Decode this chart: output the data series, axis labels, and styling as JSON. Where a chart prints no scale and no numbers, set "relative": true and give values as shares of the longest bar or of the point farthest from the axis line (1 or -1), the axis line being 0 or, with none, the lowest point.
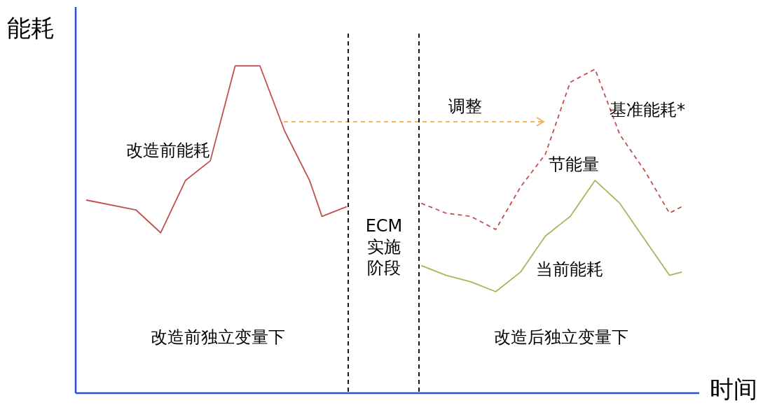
{
  "chart_data": {
    "type": "line",
    "relative": true,
    "ylabel": "能耗",
    "xlabel": "时间",
    "categories": [
      null,
      null,
      null,
      null,
      null,
      null,
      null,
      null,
      null,
      null,
      null,
      null,
      null,
      null,
      null,
      null,
      null,
      null,
      null,
      null,
      null,
      null,
      null,
      null,
      null,
      null,
      null,
      null,
      null,
      null,
      null,
      null,
      null,
      null,
      null,
      null,
      null,
      null,
      null,
      null,
      null,
      null,
      null,
      null,
      null,
      null,
      null,
      null,
      null
    ],
    "series": [
      {
        "name": "改造前能耗",
        "color": "#c0504d",
        "line_style": "solid",
        "values": [
          0.59,
          null,
          null,
          null,
          0.56,
          null,
          0.49,
          null,
          0.65,
          null,
          0.71,
          null,
          1.0,
          null,
          1.0,
          null,
          0.8,
          null,
          0.65,
          0.54,
          null,
          0.57,
          null,
          null,
          null,
          null,
          null,
          null,
          null,
          null,
          null,
          null,
          null,
          null,
          null,
          null,
          null,
          null,
          null,
          null,
          null,
          null,
          null,
          null,
          null,
          null,
          null,
          null,
          null
        ]
      },
      {
        "name": "基准能耗*",
        "color": "#c0504d",
        "line_style": "dashed",
        "values": [
          null,
          null,
          null,
          null,
          null,
          null,
          null,
          null,
          null,
          null,
          null,
          null,
          null,
          null,
          null,
          null,
          null,
          null,
          null,
          null,
          null,
          null,
          null,
          null,
          null,
          null,
          null,
          0.58,
          null,
          0.55,
          null,
          0.54,
          null,
          0.5,
          null,
          0.63,
          null,
          0.73,
          null,
          0.95,
          null,
          0.99,
          null,
          0.79,
          null,
          0.68,
          null,
          0.55,
          0.57
        ]
      },
      {
        "name": "当前能耗",
        "color": "#9bbb59",
        "line_style": "solid",
        "values": [
          null,
          null,
          null,
          null,
          null,
          null,
          null,
          null,
          null,
          null,
          null,
          null,
          null,
          null,
          null,
          null,
          null,
          null,
          null,
          null,
          null,
          null,
          null,
          null,
          null,
          null,
          null,
          0.39,
          null,
          0.36,
          null,
          0.34,
          null,
          0.31,
          null,
          0.37,
          null,
          0.48,
          null,
          0.54,
          null,
          0.65,
          null,
          0.58,
          null,
          0.47,
          null,
          0.36,
          0.37
        ]
      }
    ],
    "annotations": [
      "调整",
      "节能量",
      "ECM实施阶段",
      "改造前独立变量下",
      "改造后独立变量下"
    ],
    "marker": "none"
  }
}
